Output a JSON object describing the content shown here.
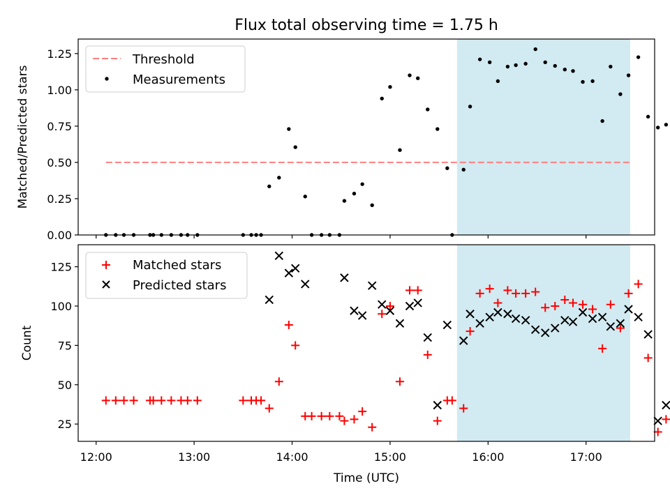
{
  "chart_data": {
    "title": "Flux total observing time = 1.75 h",
    "xlabel": "Time (UTC)",
    "x_ticks": [
      "12:00",
      "13:00",
      "14:00",
      "15:00",
      "16:00",
      "17:00"
    ],
    "x_range": [
      "11:49",
      "17:42"
    ],
    "shaded_interval": {
      "start": "15:41",
      "end": "17:27",
      "color": "#add8e6"
    },
    "panels": [
      {
        "type": "scatter",
        "ylabel": "Matched/Predicted stars",
        "ylim": [
          0,
          1.35
        ],
        "y_ticks": [
          "0.00",
          "0.25",
          "0.50",
          "0.75",
          "1.00",
          "1.25"
        ],
        "legend_position": "top-left",
        "threshold": {
          "name": "Threshold",
          "value": 0.5,
          "x_start": "12:06",
          "x_end": "17:27",
          "color": "#ff7f7f",
          "style": "dashed"
        },
        "series": [
          {
            "name": "Measurements",
            "marker": "dot",
            "color": "#000000",
            "points": [
              [
                "12:06",
                0
              ],
              [
                "12:12",
                0
              ],
              [
                "12:17",
                0
              ],
              [
                "12:23",
                0
              ],
              [
                "12:33",
                0
              ],
              [
                "12:35",
                0
              ],
              [
                "12:40",
                0
              ],
              [
                "12:46",
                0
              ],
              [
                "12:52",
                0
              ],
              [
                "12:56",
                0
              ],
              [
                "13:02",
                0
              ],
              [
                "13:30",
                0
              ],
              [
                "13:35",
                0
              ],
              [
                "13:38",
                0
              ],
              [
                "13:41",
                0
              ],
              [
                "13:46",
                0.335
              ],
              [
                "13:52",
                0.395
              ],
              [
                "13:58",
                0.73
              ],
              [
                "14:02",
                0.605
              ],
              [
                "14:08",
                0.265
              ],
              [
                "14:12",
                0
              ],
              [
                "14:18",
                0
              ],
              [
                "14:23",
                0
              ],
              [
                "14:29",
                0
              ],
              [
                "14:32",
                0.235
              ],
              [
                "14:38",
                0.285
              ],
              [
                "14:43",
                0.35
              ],
              [
                "14:49",
                0.205
              ],
              [
                "14:55",
                0.94
              ],
              [
                "15:00",
                1.02
              ],
              [
                "15:06",
                0.585
              ],
              [
                "15:12",
                1.1
              ],
              [
                "15:17",
                1.08
              ],
              [
                "15:23",
                0.865
              ],
              [
                "15:29",
                0.73
              ],
              [
                "15:35",
                0.46
              ],
              [
                "15:38",
                0
              ],
              [
                "15:45",
                0.45
              ],
              [
                "15:49",
                0.885
              ],
              [
                "15:55",
                1.21
              ],
              [
                "16:01",
                1.19
              ],
              [
                "16:06",
                1.06
              ],
              [
                "16:12",
                1.16
              ],
              [
                "16:17",
                1.17
              ],
              [
                "16:23",
                1.18
              ],
              [
                "16:29",
                1.28
              ],
              [
                "16:35",
                1.19
              ],
              [
                "16:41",
                1.165
              ],
              [
                "16:47",
                1.14
              ],
              [
                "16:52",
                1.13
              ],
              [
                "16:58",
                1.055
              ],
              [
                "17:04",
                1.06
              ],
              [
                "17:10",
                0.785
              ],
              [
                "17:15",
                1.16
              ],
              [
                "17:21",
                0.97
              ],
              [
                "17:26",
                1.1
              ],
              [
                "17:32",
                1.225
              ],
              [
                "17:38",
                0.815
              ],
              [
                "17:44",
                0.74
              ],
              [
                "17:49",
                0.76
              ]
            ]
          }
        ]
      },
      {
        "type": "scatter",
        "ylabel": "Count",
        "ylim": [
          14,
          139
        ],
        "y_ticks": [
          "25",
          "50",
          "75",
          "100",
          "125"
        ],
        "legend_position": "top-left",
        "series": [
          {
            "name": "Matched stars",
            "marker": "plus",
            "color": "#ff0000",
            "points": [
              [
                "12:06",
                40
              ],
              [
                "12:12",
                40
              ],
              [
                "12:17",
                40
              ],
              [
                "12:23",
                40
              ],
              [
                "12:33",
                40
              ],
              [
                "12:35",
                40
              ],
              [
                "12:40",
                40
              ],
              [
                "12:46",
                40
              ],
              [
                "12:52",
                40
              ],
              [
                "12:56",
                40
              ],
              [
                "13:02",
                40
              ],
              [
                "13:30",
                40
              ],
              [
                "13:35",
                40
              ],
              [
                "13:38",
                40
              ],
              [
                "13:41",
                40
              ],
              [
                "13:46",
                35
              ],
              [
                "13:52",
                52
              ],
              [
                "13:58",
                88
              ],
              [
                "14:02",
                75
              ],
              [
                "14:08",
                30
              ],
              [
                "14:12",
                30
              ],
              [
                "14:18",
                30
              ],
              [
                "14:23",
                30
              ],
              [
                "14:29",
                30
              ],
              [
                "14:32",
                27
              ],
              [
                "14:38",
                28
              ],
              [
                "14:43",
                33
              ],
              [
                "14:49",
                23
              ],
              [
                "14:55",
                95
              ],
              [
                "15:00",
                100
              ],
              [
                "15:06",
                52
              ],
              [
                "15:12",
                110
              ],
              [
                "15:17",
                110
              ],
              [
                "15:23",
                69
              ],
              [
                "15:29",
                27
              ],
              [
                "15:35",
                40
              ],
              [
                "15:38",
                40
              ],
              [
                "15:45",
                35
              ],
              [
                "15:49",
                84
              ],
              [
                "15:55",
                108
              ],
              [
                "16:01",
                111
              ],
              [
                "16:06",
                102
              ],
              [
                "16:12",
                110
              ],
              [
                "16:17",
                108
              ],
              [
                "16:23",
                108
              ],
              [
                "16:29",
                109
              ],
              [
                "16:35",
                99
              ],
              [
                "16:41",
                100
              ],
              [
                "16:47",
                104
              ],
              [
                "16:52",
                102
              ],
              [
                "16:58",
                101
              ],
              [
                "17:04",
                98
              ],
              [
                "17:10",
                73
              ],
              [
                "17:15",
                101
              ],
              [
                "17:21",
                86
              ],
              [
                "17:26",
                108
              ],
              [
                "17:32",
                114
              ],
              [
                "17:38",
                67
              ],
              [
                "17:44",
                20
              ],
              [
                "17:49",
                28
              ]
            ]
          },
          {
            "name": "Predicted stars",
            "marker": "x",
            "color": "#000000",
            "points": [
              [
                "13:46",
                104
              ],
              [
                "13:52",
                132
              ],
              [
                "13:58",
                121
              ],
              [
                "14:02",
                124
              ],
              [
                "14:08",
                114
              ],
              [
                "14:32",
                118
              ],
              [
                "14:38",
                97
              ],
              [
                "14:43",
                94
              ],
              [
                "14:49",
                113
              ],
              [
                "14:55",
                101
              ],
              [
                "15:00",
                97
              ],
              [
                "15:06",
                89
              ],
              [
                "15:12",
                100
              ],
              [
                "15:17",
                102
              ],
              [
                "15:23",
                80
              ],
              [
                "15:29",
                37
              ],
              [
                "15:35",
                88
              ],
              [
                "15:45",
                78
              ],
              [
                "15:49",
                95
              ],
              [
                "15:55",
                89
              ],
              [
                "16:01",
                93
              ],
              [
                "16:06",
                96
              ],
              [
                "16:12",
                95
              ],
              [
                "16:17",
                92
              ],
              [
                "16:23",
                91
              ],
              [
                "16:29",
                85
              ],
              [
                "16:35",
                83
              ],
              [
                "16:41",
                86
              ],
              [
                "16:47",
                91
              ],
              [
                "16:52",
                90
              ],
              [
                "16:58",
                96
              ],
              [
                "17:04",
                92
              ],
              [
                "17:10",
                93
              ],
              [
                "17:15",
                87
              ],
              [
                "17:21",
                89
              ],
              [
                "17:26",
                98
              ],
              [
                "17:32",
                93
              ],
              [
                "17:38",
                82
              ],
              [
                "17:44",
                27
              ],
              [
                "17:49",
                37
              ]
            ]
          }
        ]
      }
    ]
  }
}
